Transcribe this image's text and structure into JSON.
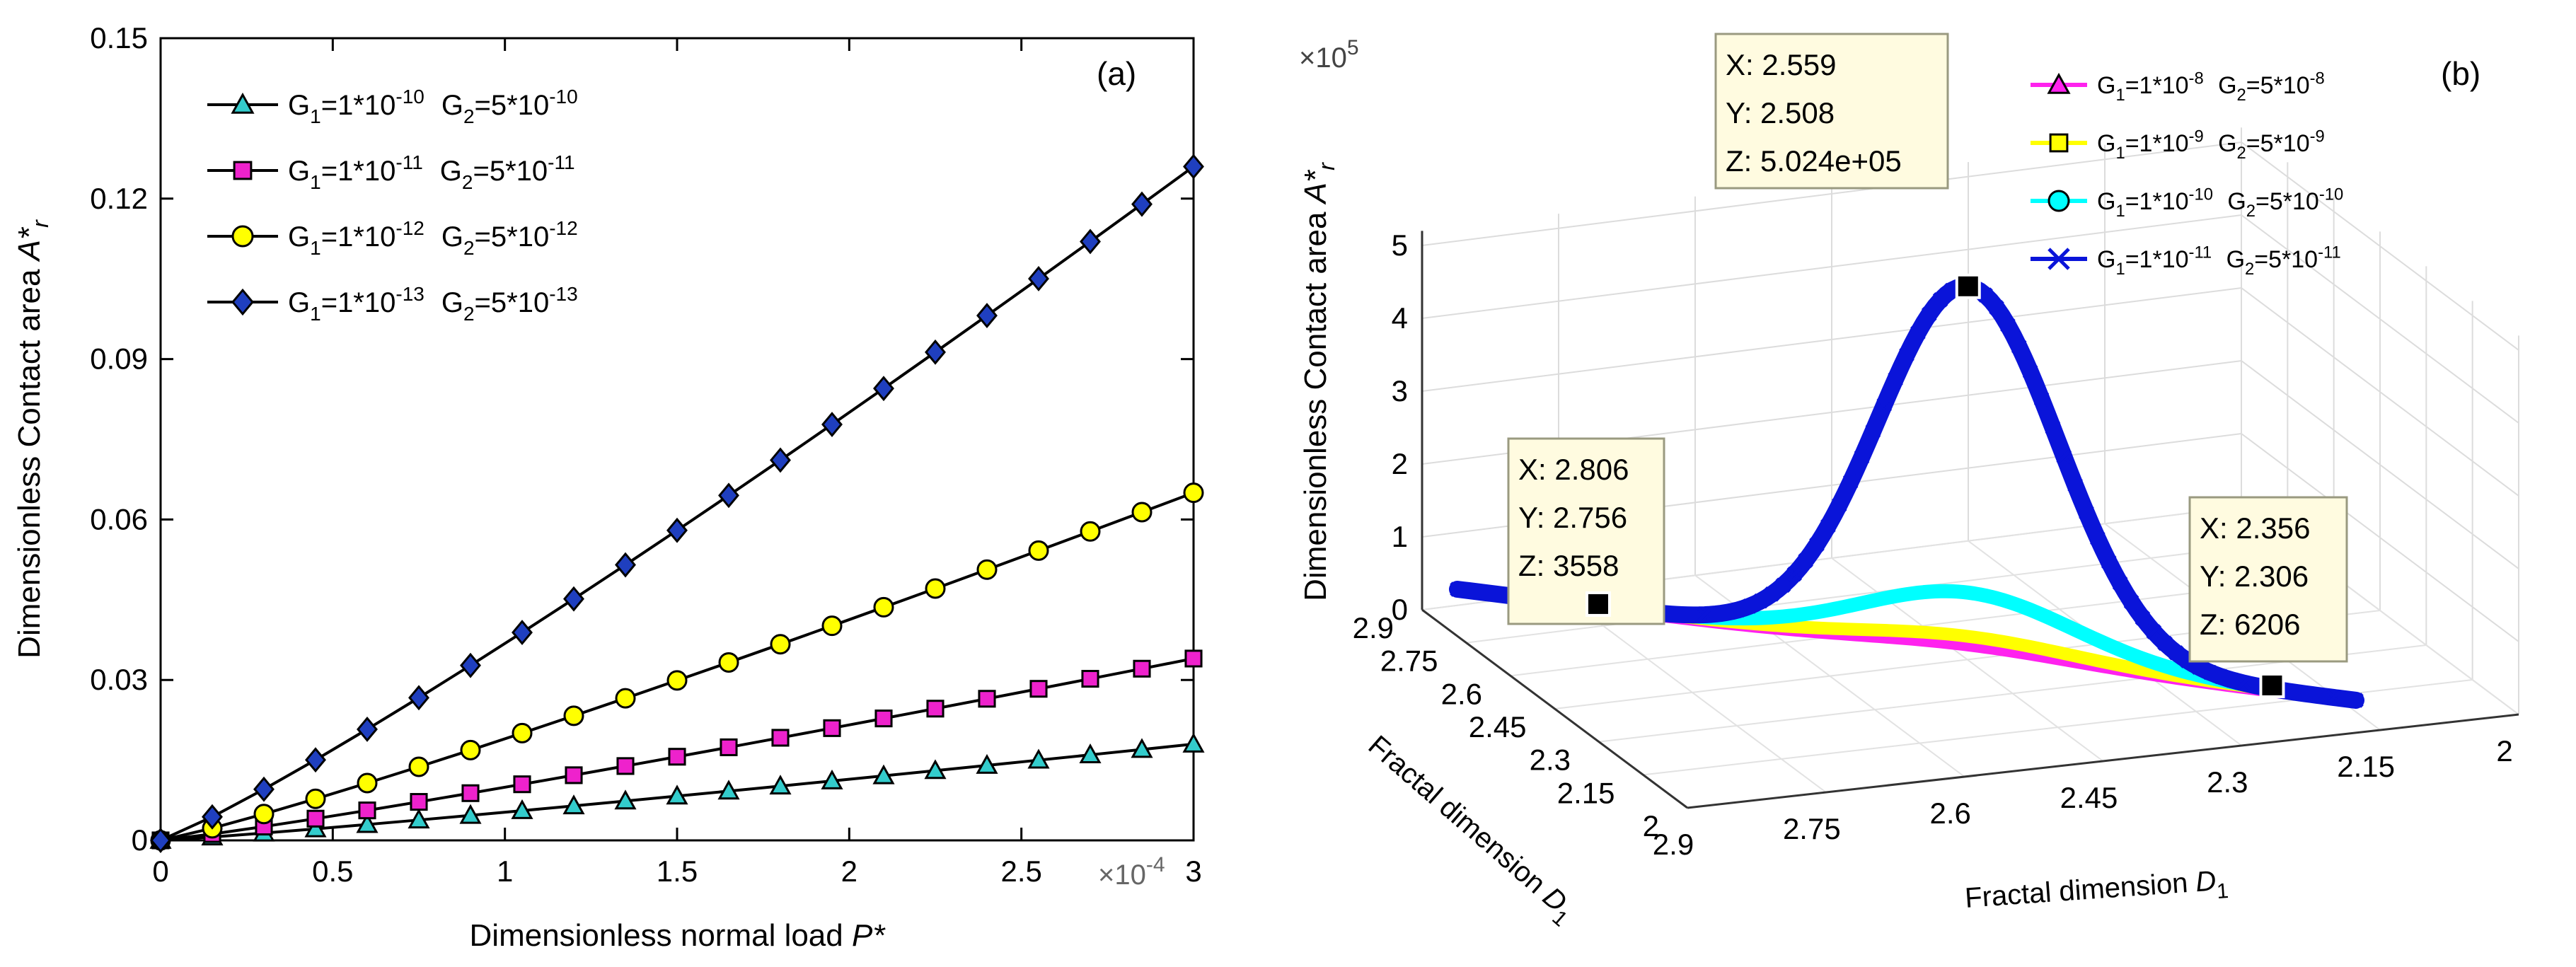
{
  "chart_data": [
    {
      "panel_label": "(a)",
      "type": "line",
      "xlabel": "Dimensionless normal load P*",
      "ylabel": "Dimensionless Contact area A*r",
      "x_exponent": "×10",
      "x_exponent_power": "-4",
      "xlim": [
        0,
        3
      ],
      "ylim": [
        0,
        0.15
      ],
      "xticks": [
        "0",
        "0.5",
        "1",
        "1.5",
        "2",
        "2.5",
        "3"
      ],
      "yticks": [
        "0",
        "0.03",
        "0.06",
        "0.09",
        "0.12",
        "0.15"
      ],
      "legend_position": "top-left",
      "x": [
        0,
        0.15,
        0.3,
        0.45,
        0.6,
        0.75,
        0.9,
        1.05,
        1.2,
        1.35,
        1.5,
        1.65,
        1.8,
        1.95,
        2.1,
        2.25,
        2.4,
        2.55,
        2.7,
        2.85,
        3.0
      ],
      "series": [
        {
          "name": "G1=1*10^-10 G2=5*10^-10",
          "g1_base": "G",
          "g1_sub": "1",
          "g1_mid": "=1*10",
          "g1_exp": "-10",
          "g2_base": "G",
          "g2_sub": "2",
          "g2_mid": "=5*10",
          "g2_exp": "-10",
          "marker": "triangle",
          "color": "#33cccc",
          "final_value": 0.018
        },
        {
          "name": "G1=1*10^-11 G2=5*10^-11",
          "g1_base": "G",
          "g1_sub": "1",
          "g1_mid": "=1*10",
          "g1_exp": "-11",
          "g2_base": "G",
          "g2_sub": "2",
          "g2_mid": "=5*10",
          "g2_exp": "-11",
          "marker": "square",
          "color": "#ee22cc",
          "final_value": 0.034
        },
        {
          "name": "G1=1*10^-12 G2=5*10^-12",
          "g1_base": "G",
          "g1_sub": "1",
          "g1_mid": "=1*10",
          "g1_exp": "-12",
          "g2_base": "G",
          "g2_sub": "2",
          "g2_mid": "=5*10",
          "g2_exp": "-12",
          "marker": "circle",
          "color": "#ffff00",
          "final_value": 0.065
        },
        {
          "name": "G1=1*10^-13 G2=5*10^-13",
          "g1_base": "G",
          "g1_sub": "1",
          "g1_mid": "=1*10",
          "g1_exp": "-13",
          "g2_base": "G",
          "g2_sub": "2",
          "g2_mid": "=5*10",
          "g2_exp": "-13",
          "marker": "diamond",
          "color": "#1f3fbf",
          "final_value": 0.126
        }
      ]
    },
    {
      "panel_label": "(b)",
      "type": "line3d",
      "zlabel": "Dimensionless Contact area A*r",
      "xlabel": "Fractal dimension D1",
      "ylabel": "Fractal dimension D1",
      "z_exponent": "×10",
      "z_exponent_power": "5",
      "zticks": [
        "0",
        "1",
        "2",
        "3",
        "4",
        "5"
      ],
      "xticks": [
        "2.9",
        "2.75",
        "2.6",
        "2.45",
        "2.3",
        "2.15",
        "2"
      ],
      "yticks": [
        "2.9",
        "2.75",
        "2.6",
        "2.45",
        "2.3",
        "2.15",
        "2"
      ],
      "d_start": 2.9,
      "d_end": 2.3,
      "peak_d": 2.559,
      "legend_position": "top-right",
      "series": [
        {
          "name": "G1=1*10^-8 G2=5*10^-8",
          "g1_base": "G",
          "g1_sub": "1",
          "g1_mid": "=1*10",
          "g1_exp": "-8",
          "g2_base": "G",
          "g2_sub": "2",
          "g2_mid": "=5*10",
          "g2_exp": "-8",
          "marker": "triangle",
          "color": "#ff22ee",
          "peak_z": 12000
        },
        {
          "name": "G1=1*10^-9 G2=5*10^-9",
          "g1_base": "G",
          "g1_sub": "1",
          "g1_mid": "=1*10",
          "g1_exp": "-9",
          "g2_base": "G",
          "g2_sub": "2",
          "g2_mid": "=5*10",
          "g2_exp": "-9",
          "marker": "square",
          "color": "#ffff00",
          "peak_z": 22000
        },
        {
          "name": "G1=1*10^-10 G2=5*10^-10",
          "g1_base": "G",
          "g1_sub": "1",
          "g1_mid": "=1*10",
          "g1_exp": "-10",
          "g2_base": "G",
          "g2_sub": "2",
          "g2_mid": "=5*10",
          "g2_exp": "-10",
          "marker": "circle",
          "color": "#00ffff",
          "peak_z": 82000
        },
        {
          "name": "G1=1*10^-11 G2=5*10^-11",
          "g1_base": "G",
          "g1_sub": "1",
          "g1_mid": "=1*10",
          "g1_exp": "-11",
          "g2_base": "G",
          "g2_sub": "2",
          "g2_mid": "=5*10",
          "g2_exp": "-11",
          "marker": "x",
          "color": "#0a14d9",
          "peak_z": 502400
        }
      ],
      "datatips": [
        {
          "x": "X: 2.806",
          "y": "Y: 2.756",
          "z": "Z: 3558",
          "d": 2.806,
          "value": 3558
        },
        {
          "x": "X: 2.559",
          "y": "Y: 2.508",
          "z": "Z: 5.024e+05",
          "d": 2.559,
          "value": 502400
        },
        {
          "x": "X: 2.356",
          "y": "Y: 2.306",
          "z": "Z: 6206",
          "d": 2.356,
          "value": 6206
        }
      ]
    }
  ]
}
